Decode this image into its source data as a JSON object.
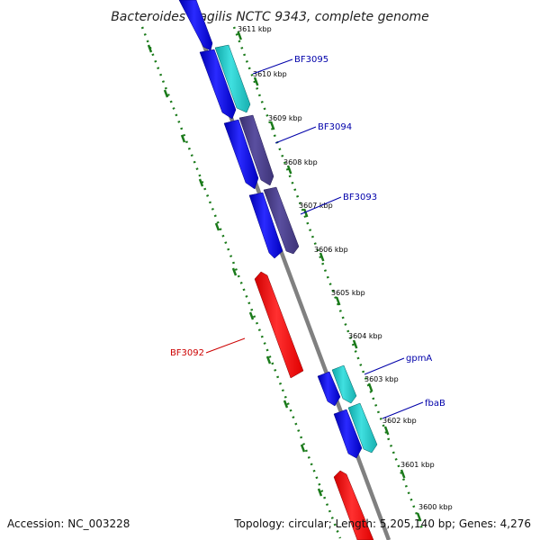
{
  "header": {
    "title": "Bacteroides fragilis NCTC 9343, complete genome"
  },
  "footer": {
    "accession": "Accession: NC_003228",
    "summary": "Topology: circular; Length: 5,205,140 bp; Genes: 4,276"
  },
  "colors": {
    "forward_gene": "#1010e0",
    "reverse_gene": "#ff1010",
    "rna_cyan": "#20c8c8",
    "purple_gene": "#4a3f8c",
    "backbone": "#808080",
    "tick": "#1a7a1a",
    "label_blue": "#0000aa",
    "label_red": "#cc0000"
  },
  "kbp_labels": [
    "3611 kbp",
    "3610 kbp",
    "3609 kbp",
    "3608 kbp",
    "3607 kbp",
    "3606 kbp",
    "3605 kbp",
    "3604 kbp",
    "3603 kbp",
    "3602 kbp",
    "3601 kbp",
    "3600 kbp"
  ],
  "gene_labels": [
    "BF3095",
    "BF3094",
    "BF3093",
    "BF3092",
    "gpmA",
    "fbaB"
  ]
}
